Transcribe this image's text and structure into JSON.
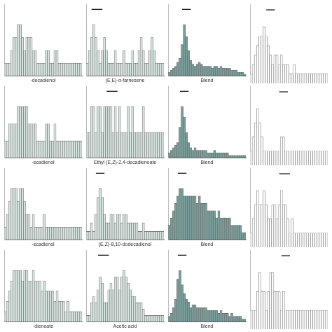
{
  "chart_data": [
    {
      "type": "bar",
      "values": [
        1,
        1,
        1,
        2,
        3,
        3,
        4,
        4,
        3,
        2,
        3,
        3,
        3,
        2,
        2,
        1,
        1,
        1,
        1,
        2,
        2,
        1,
        1,
        2,
        2,
        1,
        1,
        1,
        1,
        1,
        1,
        1,
        1,
        1,
        1,
        1
      ],
      "color": "#d8e4e0",
      "x_label": "-decadienol",
      "ylim": [
        0,
        5.6
      ],
      "tick_labels": false,
      "grid": false
    },
    {
      "type": "bar",
      "values": [
        1,
        2,
        3,
        4,
        3,
        2,
        1,
        2,
        3,
        2,
        1,
        1,
        1,
        2,
        1,
        1,
        1,
        2,
        1,
        1,
        1,
        2,
        1,
        1,
        2,
        3,
        2,
        1,
        1,
        2,
        3,
        2,
        1,
        1,
        1,
        1
      ],
      "color": "#d8e4e0",
      "x_label": "(E,E)-α-farnesene",
      "ylim": [
        0,
        5.6
      ],
      "tick_labels": false,
      "grid": false,
      "overline": {
        "from": 2,
        "to": 7,
        "y": 5.2
      }
    },
    {
      "type": "bar",
      "values": [
        2,
        3,
        4,
        5,
        7,
        9,
        16,
        26,
        20,
        13,
        8,
        6,
        5,
        6,
        7,
        6,
        5,
        5,
        5,
        5,
        4,
        5,
        5,
        4,
        5,
        4,
        4,
        4,
        4,
        3,
        3,
        3,
        2,
        2,
        2,
        1
      ],
      "color": "#7a9e9a",
      "x_label": "Blend",
      "ylim": [
        0,
        36.4
      ],
      "tick_labels": false,
      "grid": false,
      "overline": {
        "from": 6,
        "to": 10,
        "y": 33.8
      }
    },
    {
      "type": "bar",
      "values": [
        1,
        2,
        3,
        4,
        5,
        5,
        6,
        5,
        4,
        3,
        2,
        3,
        3,
        2,
        3,
        2,
        2,
        2,
        1,
        1,
        2,
        1,
        1,
        1,
        1,
        1,
        1,
        1,
        1,
        1,
        1,
        1,
        1,
        1,
        1,
        1
      ],
      "color": "#ffffff",
      "ylim": [
        0,
        8.4
      ],
      "tick_labels": false,
      "grid": false,
      "overline": {
        "from": 7,
        "to": 11,
        "y": 7.8
      }
    },
    {
      "type": "bar",
      "values": [
        1,
        1,
        2,
        2,
        2,
        2,
        3,
        3,
        3,
        3,
        3,
        2,
        2,
        2,
        2,
        1,
        1,
        1,
        1,
        2,
        2,
        1,
        1,
        2,
        1,
        1,
        1,
        1,
        1,
        1,
        1,
        1,
        1,
        1,
        1,
        1
      ],
      "color": "#d8e4e0",
      "x_label": "-ecadienol",
      "ylim": [
        0,
        4.2
      ],
      "tick_labels": false,
      "grid": false
    },
    {
      "type": "bar",
      "values": [
        1,
        1,
        2,
        2,
        1,
        2,
        2,
        1,
        2,
        2,
        2,
        2,
        1,
        2,
        1,
        2,
        1,
        1,
        1,
        2,
        1,
        2,
        1,
        1,
        1,
        1,
        2,
        1,
        1,
        1,
        1,
        1,
        1,
        1,
        1,
        1
      ],
      "color": "#d8e4e0",
      "x_label": "Ethyl (E,Z)-2,4-decadienoate",
      "ylim": [
        0,
        2.8
      ],
      "tick_labels": false,
      "grid": false,
      "overline": {
        "from": 9,
        "to": 14,
        "y": 2.6
      }
    },
    {
      "type": "bar",
      "values": [
        2,
        3,
        4,
        5,
        6,
        12,
        20,
        16,
        10,
        6,
        4,
        3,
        4,
        3,
        3,
        3,
        3,
        3,
        2,
        2,
        2,
        3,
        2,
        2,
        2,
        2,
        2,
        2,
        1,
        1,
        1,
        1,
        1,
        1,
        1,
        1
      ],
      "color": "#7a9e9a",
      "x_label": "Blend",
      "ylim": [
        0,
        28
      ],
      "tick_labels": false,
      "grid": false,
      "overline": {
        "from": 5,
        "to": 9,
        "y": 26
      }
    },
    {
      "type": "bar",
      "values": [
        1,
        2,
        3,
        4,
        3,
        2,
        1,
        1,
        1,
        1,
        1,
        1,
        1,
        1,
        2,
        2,
        1,
        1,
        1,
        1,
        1,
        1,
        1,
        1,
        1,
        1,
        1,
        1,
        1,
        1,
        1,
        1,
        1,
        1,
        1,
        1
      ],
      "color": "#ffffff",
      "ylim": [
        0,
        5.6
      ],
      "tick_labels": false,
      "grid": false,
      "overline": {
        "from": 13,
        "to": 17,
        "y": 5.2
      }
    },
    {
      "type": "bar",
      "values": [
        1,
        2,
        3,
        4,
        4,
        4,
        3,
        4,
        4,
        3,
        2,
        2,
        1,
        2,
        1,
        1,
        1,
        1,
        2,
        1,
        1,
        1,
        1,
        1,
        1,
        1,
        1,
        1,
        1,
        1,
        1,
        1,
        1,
        1,
        1,
        1
      ],
      "color": "#d8e4e0",
      "x_label": "-ecadienol",
      "ylim": [
        0,
        5.6
      ],
      "tick_labels": false,
      "grid": false
    },
    {
      "type": "bar",
      "values": [
        1,
        1,
        2,
        1,
        3,
        5,
        6,
        5,
        3,
        2,
        2,
        3,
        3,
        2,
        3,
        3,
        2,
        3,
        3,
        2,
        2,
        2,
        2,
        2,
        1,
        1,
        2,
        1,
        1,
        1,
        1,
        1,
        1,
        1,
        1,
        1
      ],
      "color": "#d8e4e0",
      "x_label": "(E,Z)-8,10-dodecadienol",
      "ylim": [
        0,
        8.4
      ],
      "tick_labels": false,
      "grid": false,
      "overline": {
        "from": 4,
        "to": 8,
        "y": 7.8
      }
    },
    {
      "type": "bar",
      "values": [
        2,
        3,
        4,
        5,
        6,
        7,
        7,
        6,
        6,
        6,
        6,
        6,
        6,
        5,
        6,
        5,
        5,
        5,
        4,
        4,
        4,
        4,
        3,
        4,
        3,
        3,
        3,
        3,
        3,
        2,
        2,
        2,
        2,
        2,
        1,
        1
      ],
      "color": "#7a9e9a",
      "x_label": "Blend",
      "ylim": [
        0,
        9.8
      ],
      "tick_labels": false,
      "grid": false,
      "overline": {
        "from": 4,
        "to": 8,
        "y": 9.1
      }
    },
    {
      "type": "bar",
      "values": [
        1,
        2,
        3,
        4,
        3,
        3,
        4,
        3,
        2,
        2,
        3,
        3,
        2,
        3,
        4,
        3,
        3,
        2,
        1,
        2,
        1,
        1,
        1,
        1,
        1,
        1,
        1,
        1,
        1,
        1,
        1,
        1,
        1,
        1,
        1,
        1
      ],
      "color": "#ffffff",
      "ylim": [
        0,
        5.6
      ],
      "tick_labels": false,
      "grid": false,
      "overline": {
        "from": 13,
        "to": 18,
        "y": 5.2
      }
    },
    {
      "type": "bar",
      "values": [
        1,
        2,
        3,
        4,
        5,
        5,
        5,
        5,
        4,
        5,
        5,
        4,
        4,
        5,
        4,
        4,
        4,
        3,
        4,
        3,
        3,
        3,
        3,
        2,
        3,
        2,
        2,
        2,
        1,
        2,
        1,
        1,
        1,
        1,
        1,
        1
      ],
      "color": "#d8e4e0",
      "x_label": "-dienoate",
      "ylim": [
        0,
        7
      ],
      "tick_labels": false,
      "grid": false
    },
    {
      "type": "bar",
      "values": [
        1,
        1,
        3,
        4,
        3,
        5,
        7,
        6,
        3,
        3,
        5,
        6,
        5,
        7,
        7,
        5,
        7,
        8,
        7,
        6,
        5,
        4,
        4,
        3,
        3,
        3,
        2,
        1,
        1,
        1,
        1,
        1,
        1,
        1,
        1,
        1
      ],
      "color": "#d8e4e0",
      "x_label": "Acetic acid",
      "ylim": [
        0,
        11.2
      ],
      "tick_labels": false,
      "grid": false,
      "overline": {
        "from": 5,
        "to": 10,
        "y": 10.4
      }
    },
    {
      "type": "bar",
      "values": [
        2,
        3,
        5,
        8,
        15,
        18,
        13,
        10,
        8,
        7,
        5,
        6,
        6,
        5,
        5,
        5,
        5,
        5,
        4,
        4,
        4,
        4,
        4,
        3,
        4,
        3,
        3,
        3,
        2,
        3,
        2,
        2,
        2,
        2,
        1,
        1
      ],
      "color": "#7a9e9a",
      "x_label": "Blend",
      "ylim": [
        0,
        25.2
      ],
      "tick_labels": false,
      "grid": false,
      "overline": {
        "from": 4,
        "to": 8,
        "y": 23.4
      }
    },
    {
      "type": "bar",
      "values": [
        1,
        1,
        1,
        2,
        3,
        2,
        2,
        1,
        2,
        3,
        3,
        2,
        2,
        2,
        1,
        2,
        1,
        1,
        1,
        1,
        1,
        1,
        1,
        1,
        1,
        1,
        1,
        1,
        1,
        1,
        1,
        1,
        1,
        1,
        1,
        1
      ],
      "color": "#ffffff",
      "ylim": [
        0,
        4.2
      ],
      "tick_labels": false,
      "grid": false,
      "overline": {
        "from": 14,
        "to": 18,
        "y": 3.9
      }
    }
  ]
}
